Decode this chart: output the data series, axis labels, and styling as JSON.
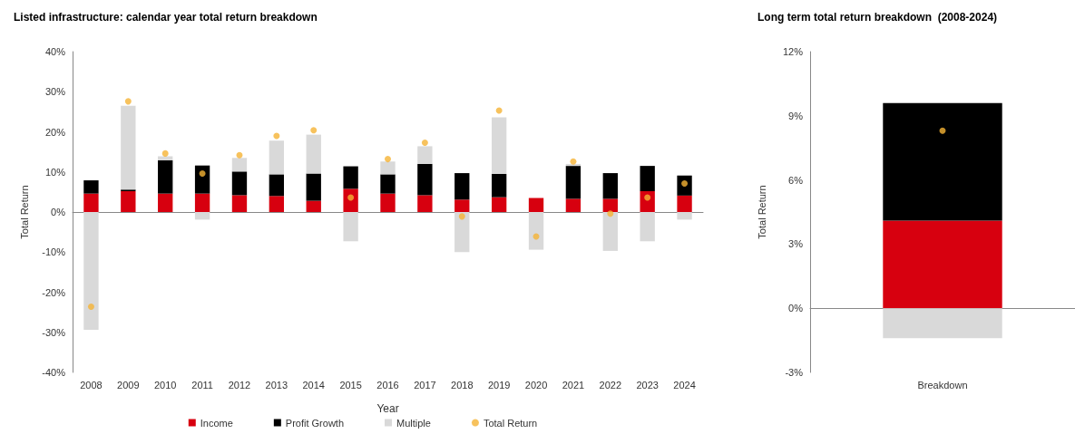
{
  "chart_data": [
    {
      "type": "bar",
      "title": "Listed infrastructure: calendar year total return breakdown",
      "xlabel": "Year",
      "ylabel": "Total Return",
      "stacked": true,
      "legend": "bottom",
      "marker": "circle",
      "categories": [
        "2008",
        "2009",
        "2010",
        "2011",
        "2012",
        "2013",
        "2014",
        "2015",
        "2016",
        "2017",
        "2018",
        "2019",
        "2020",
        "2021",
        "2022",
        "2023",
        "2024"
      ],
      "ylim": [
        -40,
        40
      ],
      "yticks": [
        {
          "value": -40,
          "label": "-40%"
        },
        {
          "value": -30,
          "label": "-30%"
        },
        {
          "value": -20,
          "label": "-20%"
        },
        {
          "value": -10,
          "label": "-10%"
        },
        {
          "value": 0,
          "label": "0%"
        },
        {
          "value": 10,
          "label": "10%"
        },
        {
          "value": 20,
          "label": "20%"
        },
        {
          "value": 30,
          "label": "30%"
        },
        {
          "value": 40,
          "label": "40%"
        }
      ],
      "series": [
        {
          "name": "Income",
          "color": "#d7000f",
          "values": [
            4.6,
            5.2,
            4.6,
            4.6,
            4.2,
            4.0,
            2.8,
            5.8,
            4.6,
            4.2,
            3.1,
            3.7,
            3.5,
            3.3,
            3.3,
            5.2,
            4.1
          ]
        },
        {
          "name": "Profit Growth",
          "color": "#000000",
          "values": [
            3.3,
            0.4,
            8.3,
            7.0,
            5.9,
            5.4,
            6.8,
            5.6,
            4.8,
            7.8,
            6.6,
            5.8,
            null,
            8.2,
            6.4,
            6.3,
            5.0
          ]
        },
        {
          "name": "Multiple",
          "color": "#d9d9d9",
          "values": [
            -29.4,
            20.9,
            1.0,
            -1.9,
            3.4,
            8.4,
            9.7,
            -7.3,
            3.2,
            4.4,
            -10.0,
            14.1,
            -9.4,
            0.5,
            -9.7,
            -7.3,
            -1.9
          ]
        },
        {
          "name": "Total Return",
          "type": "scatter",
          "color": "#f5b335",
          "values": [
            -23.6,
            27.6,
            14.6,
            9.6,
            14.2,
            19.0,
            20.4,
            3.6,
            13.2,
            17.3,
            -1.1,
            25.3,
            -6.1,
            12.6,
            -0.4,
            3.6,
            7.1
          ]
        }
      ]
    },
    {
      "type": "bar",
      "title": "Long term total return breakdown  (2008-2024)",
      "ylabel": "Total Return",
      "stacked": true,
      "marker": "circle",
      "categories": [
        "Breakdown"
      ],
      "ylim": [
        -3,
        12
      ],
      "yticks": [
        {
          "value": -3,
          "label": "-3%"
        },
        {
          "value": 0,
          "label": "0%"
        },
        {
          "value": 3,
          "label": "3%"
        },
        {
          "value": 6,
          "label": "6%"
        },
        {
          "value": 9,
          "label": "9%"
        },
        {
          "value": 12,
          "label": "12%"
        }
      ],
      "series": [
        {
          "color": "#d7000f",
          "values": [
            4.1
          ]
        },
        {
          "color": "#000000",
          "values": [
            5.5
          ]
        },
        {
          "color": "#d9d9d9",
          "values": [
            -1.4
          ]
        },
        {
          "type": "scatter",
          "color": "#f5b335",
          "values": [
            8.3
          ]
        }
      ]
    }
  ]
}
